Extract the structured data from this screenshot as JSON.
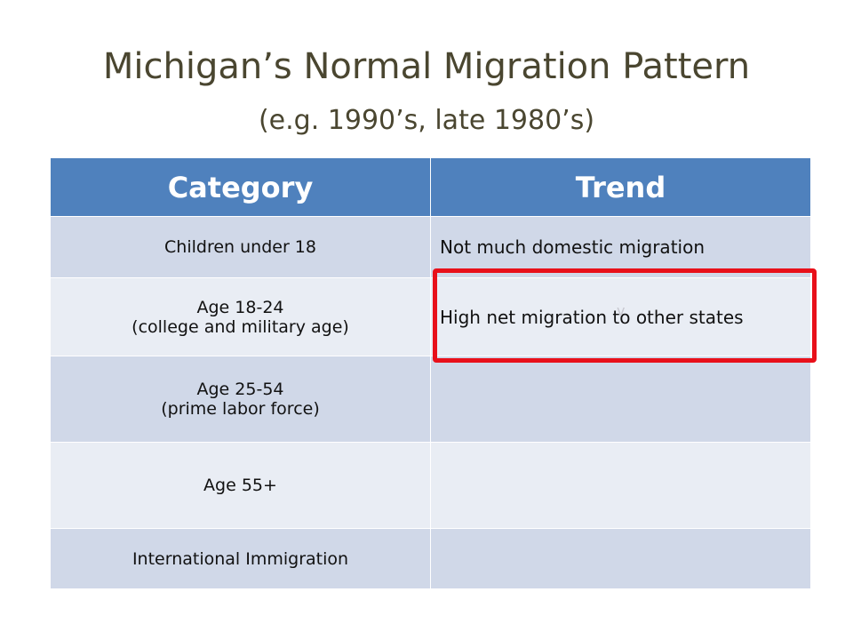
{
  "slide": {
    "title": "Michigan’s Normal Migration Pattern",
    "subtitle": "(e.g. 1990’s, late 1980’s)",
    "table": {
      "header": [
        "Category",
        "Trend"
      ],
      "rows": [
        {
          "category": [
            "Children under 18"
          ],
          "trend": "Not much domestic migration"
        },
        {
          "category": [
            "Age 18-24",
            "(college and military age)"
          ],
          "trend": "High net migration to other states"
        },
        {
          "category": [
            "Age 25-54",
            "(prime labor force)"
          ]
        },
        {
          "category": [
            "Age 55+"
          ]
        },
        {
          "category": [
            "International Immigration"
          ]
        }
      ]
    },
    "annotation": "v"
  }
}
